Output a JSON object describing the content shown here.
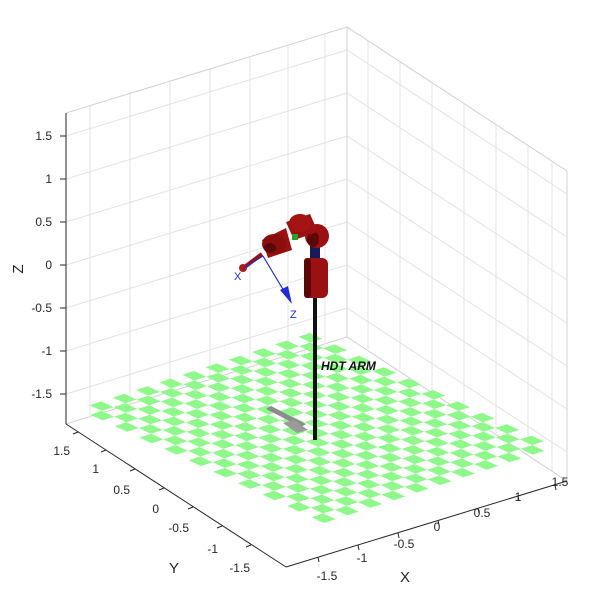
{
  "plot": {
    "robot_label": "HDT ARM",
    "axis_labels": {
      "x": "X",
      "y": "Y",
      "z": "Z"
    },
    "z_ticks": [
      "1.5",
      "1",
      "0.5",
      "0",
      "-0.5",
      "-1",
      "-1.5"
    ],
    "x_ticks": [
      "-1.5",
      "-1",
      "-0.5",
      "0",
      "0.5",
      "1",
      "1.5"
    ],
    "y_ticks": [
      "1.5",
      "1",
      "0.5",
      "0",
      "-0.5",
      "-1",
      "-1.5"
    ],
    "frame_labels": {
      "x": "X",
      "z": "Z"
    },
    "colors": {
      "background": "#ffffff",
      "grid": "#e3e3e3",
      "axis": "#262626",
      "floor_green": "#8ef98a",
      "robot_red": "#9b1010",
      "robot_dark": "#5d0808",
      "frame_blue": "#1f2bd6",
      "shadow": "#8c8c8c"
    },
    "view": {
      "type": "3d-isometric",
      "grid": "on",
      "floor": "checkerboard"
    }
  }
}
